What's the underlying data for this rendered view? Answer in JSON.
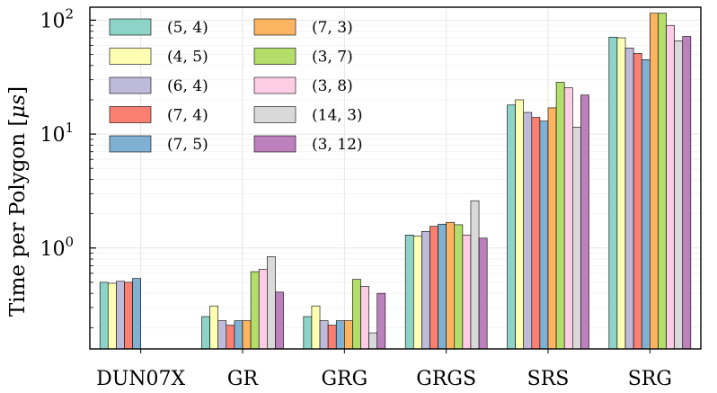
{
  "chart_data": {
    "type": "bar",
    "ylabel": "Time per Polygon [",
    "ylabel_unit": "μs",
    "ylabel_close": "]",
    "yscale": "log",
    "ylim": [
      0.13,
      130
    ],
    "grid": true,
    "legend_position": "upper-left",
    "yticks": [
      {
        "value": 1,
        "base": "10",
        "exp": "0"
      },
      {
        "value": 10,
        "base": "10",
        "exp": "1"
      },
      {
        "value": 100,
        "base": "10",
        "exp": "2"
      }
    ],
    "categories": [
      "DUN07X",
      "GR",
      "GRG",
      "GRGS",
      "SRS",
      "SRG"
    ],
    "series": [
      {
        "name": "(5, 4)",
        "color": "#8dd3c7",
        "values": [
          0.5,
          0.25,
          0.25,
          1.3,
          18.0,
          71.0
        ]
      },
      {
        "name": "(4, 5)",
        "color": "#ffffb3",
        "values": [
          0.49,
          0.31,
          0.31,
          1.27,
          20.0,
          70.0
        ]
      },
      {
        "name": "(6, 4)",
        "color": "#bebada",
        "values": [
          0.51,
          0.23,
          0.23,
          1.4,
          15.5,
          57.0
        ]
      },
      {
        "name": "(7, 4)",
        "color": "#fb8072",
        "values": [
          0.5,
          0.21,
          0.21,
          1.55,
          14.0,
          51.0
        ]
      },
      {
        "name": "(7, 5)",
        "color": "#80b1d3",
        "values": [
          0.54,
          0.23,
          0.23,
          1.62,
          13.0,
          45.0
        ]
      },
      {
        "name": "(7, 3)",
        "color": "#fdb462",
        "values": [
          null,
          0.23,
          0.23,
          1.68,
          17.0,
          115.0
        ]
      },
      {
        "name": "(3, 7)",
        "color": "#b3de69",
        "values": [
          null,
          0.62,
          0.53,
          1.6,
          28.5,
          115.0
        ]
      },
      {
        "name": "(3, 8)",
        "color": "#fccde5",
        "values": [
          null,
          0.65,
          0.46,
          1.3,
          25.5,
          90.0
        ]
      },
      {
        "name": "(14, 3)",
        "color": "#d9d9d9",
        "values": [
          null,
          0.84,
          0.18,
          2.6,
          11.5,
          66.0
        ]
      },
      {
        "name": "(3, 12)",
        "color": "#bc80bd",
        "values": [
          null,
          0.41,
          0.4,
          1.22,
          22.0,
          72.0
        ]
      }
    ]
  }
}
